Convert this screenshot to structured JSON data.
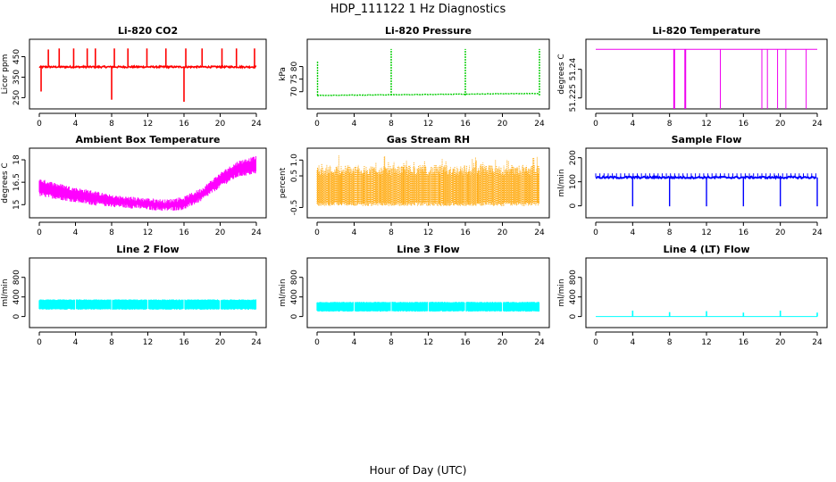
{
  "figure": {
    "title": "HDP_111122  1 Hz Diagnostics",
    "xlabel": "Hour of Day (UTC)"
  },
  "chart_data": [
    {
      "type": "line",
      "title": "Li-820 CO2",
      "ylabel": "Licor ppm",
      "color": "#ff0000",
      "xlim": [
        0,
        24
      ],
      "ylim": [
        230,
        500
      ],
      "xticks": [
        0,
        4,
        8,
        12,
        16,
        20,
        24
      ],
      "yticks": [
        250,
        350,
        450
      ],
      "baseline": 400,
      "noise": 8,
      "spikes": [
        [
          0.2,
          280
        ],
        [
          1.0,
          485
        ],
        [
          2.2,
          490
        ],
        [
          3.8,
          490
        ],
        [
          5.3,
          490
        ],
        [
          6.2,
          490
        ],
        [
          8.0,
          240
        ],
        [
          8.3,
          490
        ],
        [
          9.8,
          490
        ],
        [
          11.9,
          490
        ],
        [
          14.0,
          490
        ],
        [
          16.0,
          230
        ],
        [
          16.2,
          490
        ],
        [
          18.0,
          490
        ],
        [
          20.2,
          490
        ],
        [
          21.8,
          490
        ],
        [
          23.8,
          490
        ]
      ]
    },
    {
      "type": "line",
      "title": "Li-820 Pressure",
      "ylabel": "kPa",
      "color": "#00cc00",
      "xlim": [
        0,
        24
      ],
      "ylim": [
        66,
        88
      ],
      "xticks": [
        0,
        4,
        8,
        12,
        16,
        20,
        24
      ],
      "yticks": [
        70,
        75,
        80
      ],
      "baseline_start": 68.5,
      "baseline_end": 69.3,
      "noise": 0.2,
      "spikes": [
        [
          0.05,
          82
        ],
        [
          8.0,
          87
        ],
        [
          16.0,
          87
        ],
        [
          24.0,
          87
        ]
      ]
    },
    {
      "type": "line",
      "title": "Li-820 Temperature",
      "ylabel": "degrees C",
      "color": "#ee00ee",
      "xlim": [
        0,
        24
      ],
      "ylim": [
        51.223,
        51.252
      ],
      "xticks": [
        0,
        4,
        8,
        12,
        16,
        20,
        24
      ],
      "yticks": [
        51.225,
        51.24
      ],
      "baseline": 51.2505,
      "dips": [
        8.5,
        9.7,
        13.5,
        18.0,
        18.6,
        19.7,
        20.6,
        22.8
      ]
    },
    {
      "type": "area",
      "title": "Ambient Box Temperature",
      "ylabel": "degrees C",
      "color": "#ff00ff",
      "xlim": [
        0,
        24
      ],
      "ylim": [
        14.6,
        18.3
      ],
      "xticks": [
        0,
        4,
        8,
        12,
        16,
        20,
        24
      ],
      "yticks": [
        15.0,
        16.5,
        18.0
      ],
      "x": [
        0,
        2,
        4,
        6,
        8,
        10,
        12,
        14,
        16,
        18,
        20,
        22,
        24
      ],
      "upper": [
        16.6,
        16.3,
        16.0,
        15.8,
        15.5,
        15.4,
        15.3,
        15.2,
        15.4,
        16.0,
        17.0,
        17.8,
        18.1
      ],
      "lower": [
        15.7,
        15.5,
        15.3,
        15.1,
        15.0,
        14.9,
        14.8,
        14.7,
        14.8,
        15.4,
        16.3,
        17.0,
        17.2
      ]
    },
    {
      "type": "area",
      "title": "Gas Stream RH",
      "ylabel": "percent",
      "color": "#ffa500",
      "xlim": [
        0,
        24
      ],
      "ylim": [
        -0.6,
        1.15
      ],
      "xticks": [
        0,
        4,
        8,
        12,
        16,
        20,
        24
      ],
      "yticks": [
        -0.5,
        0.5,
        1.0
      ],
      "ytick_labels": [
        "-0.5",
        "0.5",
        "1.0"
      ],
      "band_low": -0.45,
      "band_high": 0.7,
      "peak_high": 1.05
    },
    {
      "type": "line",
      "title": "Sample Flow",
      "ylabel": "ml/min",
      "color": "#0000ff",
      "xlim": [
        0,
        24
      ],
      "ylim": [
        -20,
        210
      ],
      "xticks": [
        0,
        4,
        8,
        12,
        16,
        20,
        24
      ],
      "yticks": [
        0,
        100,
        200
      ],
      "baseline": 118,
      "upper": 135,
      "dips": [
        4.0,
        8.0,
        12.0,
        16.0,
        20.0,
        24.0
      ],
      "dip_value": -2
    },
    {
      "type": "area",
      "title": "Line 2 Flow",
      "ylabel": "ml/min",
      "color": "#00ffff",
      "xlim": [
        0,
        24
      ],
      "ylim": [
        -80,
        1050
      ],
      "xticks": [
        0,
        4,
        8,
        12,
        16,
        20,
        24
      ],
      "yticks": [
        0,
        400,
        800
      ],
      "band_low": 150,
      "band_high": 340,
      "breaks": [
        4.0,
        8.0,
        12.0,
        16.0,
        20.0
      ]
    },
    {
      "type": "area",
      "title": "Line 3 Flow",
      "ylabel": "ml/min",
      "color": "#00ffff",
      "xlim": [
        0,
        24
      ],
      "ylim": [
        -80,
        1050
      ],
      "xticks": [
        0,
        4,
        8,
        12,
        16,
        20,
        24
      ],
      "yticks": [
        0,
        400,
        800
      ],
      "band_low": 110,
      "band_high": 290,
      "breaks": [
        4.0,
        8.0,
        12.0,
        16.0,
        20.0
      ]
    },
    {
      "type": "line",
      "title": "Line 4 (LT) Flow",
      "ylabel": "ml/min",
      "color": "#00ffff",
      "xlim": [
        0,
        24
      ],
      "ylim": [
        -80,
        1050
      ],
      "xticks": [
        0,
        4,
        8,
        12,
        16,
        20,
        24
      ],
      "yticks": [
        0,
        400,
        800
      ],
      "baseline": 0,
      "spikes": [
        [
          4.0,
          120
        ],
        [
          8.0,
          90
        ],
        [
          12.0,
          110
        ],
        [
          16.0,
          80
        ],
        [
          20.0,
          120
        ],
        [
          24.0,
          80
        ]
      ]
    }
  ]
}
